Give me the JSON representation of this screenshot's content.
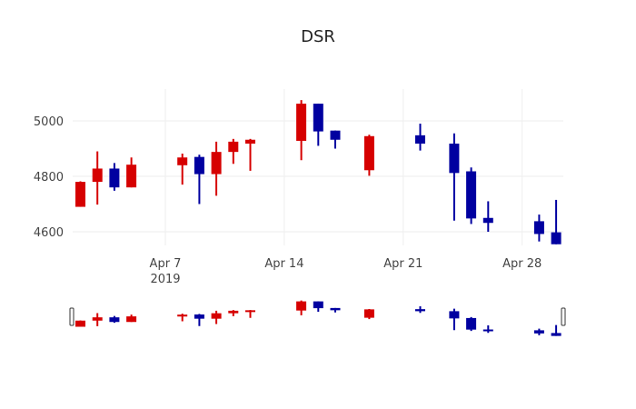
{
  "chart_data": {
    "type": "candlestick",
    "title": "DSR",
    "xlabel": "",
    "ylabel": "",
    "ylim": [
      4550,
      5110
    ],
    "yticks": [
      4600,
      4800,
      5000
    ],
    "xticks": [
      {
        "label": "Apr 7",
        "sub": "2019",
        "day": 7
      },
      {
        "label": "Apr 14",
        "sub": "",
        "day": 14
      },
      {
        "label": "Apr 21",
        "sub": "",
        "day": 21
      },
      {
        "label": "Apr 28",
        "sub": "",
        "day": 28
      }
    ],
    "grid": true,
    "rangeslider": true,
    "increasing_color": "#d60000",
    "decreasing_color": "#0000a0",
    "candles": [
      {
        "date": "2019-04-02",
        "day": 2,
        "open": 4690,
        "high": 4782,
        "low": 4690,
        "close": 4780,
        "dir": "inc"
      },
      {
        "date": "2019-04-03",
        "day": 3,
        "open": 4780,
        "high": 4890,
        "low": 4698,
        "close": 4828,
        "dir": "inc"
      },
      {
        "date": "2019-04-04",
        "day": 4,
        "open": 4828,
        "high": 4848,
        "low": 4748,
        "close": 4760,
        "dir": "dec"
      },
      {
        "date": "2019-04-05",
        "day": 5,
        "open": 4760,
        "high": 4868,
        "low": 4760,
        "close": 4842,
        "dir": "inc"
      },
      {
        "date": "2019-04-08",
        "day": 8,
        "open": 4840,
        "high": 4882,
        "low": 4770,
        "close": 4868,
        "dir": "inc"
      },
      {
        "date": "2019-04-09",
        "day": 9,
        "open": 4870,
        "high": 4878,
        "low": 4700,
        "close": 4808,
        "dir": "dec"
      },
      {
        "date": "2019-04-10",
        "day": 10,
        "open": 4808,
        "high": 4925,
        "low": 4730,
        "close": 4888,
        "dir": "inc"
      },
      {
        "date": "2019-04-11",
        "day": 11,
        "open": 4888,
        "high": 4935,
        "low": 4845,
        "close": 4925,
        "dir": "inc"
      },
      {
        "date": "2019-04-12",
        "day": 12,
        "open": 4918,
        "high": 4935,
        "low": 4820,
        "close": 4932,
        "dir": "inc"
      },
      {
        "date": "2019-04-15",
        "day": 15,
        "open": 4928,
        "high": 5075,
        "low": 4858,
        "close": 5062,
        "dir": "inc"
      },
      {
        "date": "2019-04-16",
        "day": 16,
        "open": 5062,
        "high": 5062,
        "low": 4910,
        "close": 4962,
        "dir": "dec"
      },
      {
        "date": "2019-04-17",
        "day": 17,
        "open": 4965,
        "high": 4965,
        "low": 4900,
        "close": 4932,
        "dir": "dec"
      },
      {
        "date": "2019-04-19",
        "day": 19,
        "open": 4822,
        "high": 4950,
        "low": 4802,
        "close": 4945,
        "dir": "inc"
      },
      {
        "date": "2019-04-22",
        "day": 22,
        "open": 4948,
        "high": 4990,
        "low": 4893,
        "close": 4918,
        "dir": "dec"
      },
      {
        "date": "2019-04-24",
        "day": 24,
        "open": 4918,
        "high": 4955,
        "low": 4640,
        "close": 4812,
        "dir": "dec"
      },
      {
        "date": "2019-04-25",
        "day": 25,
        "open": 4818,
        "high": 4832,
        "low": 4628,
        "close": 4648,
        "dir": "dec"
      },
      {
        "date": "2019-04-26",
        "day": 26,
        "open": 4650,
        "high": 4710,
        "low": 4600,
        "close": 4632,
        "dir": "dec"
      },
      {
        "date": "2019-04-29",
        "day": 29,
        "open": 4638,
        "high": 4662,
        "low": 4565,
        "close": 4592,
        "dir": "dec"
      },
      {
        "date": "2019-04-30",
        "day": 30,
        "open": 4598,
        "high": 4715,
        "low": 4555,
        "close": 4555,
        "dir": "dec"
      }
    ]
  }
}
